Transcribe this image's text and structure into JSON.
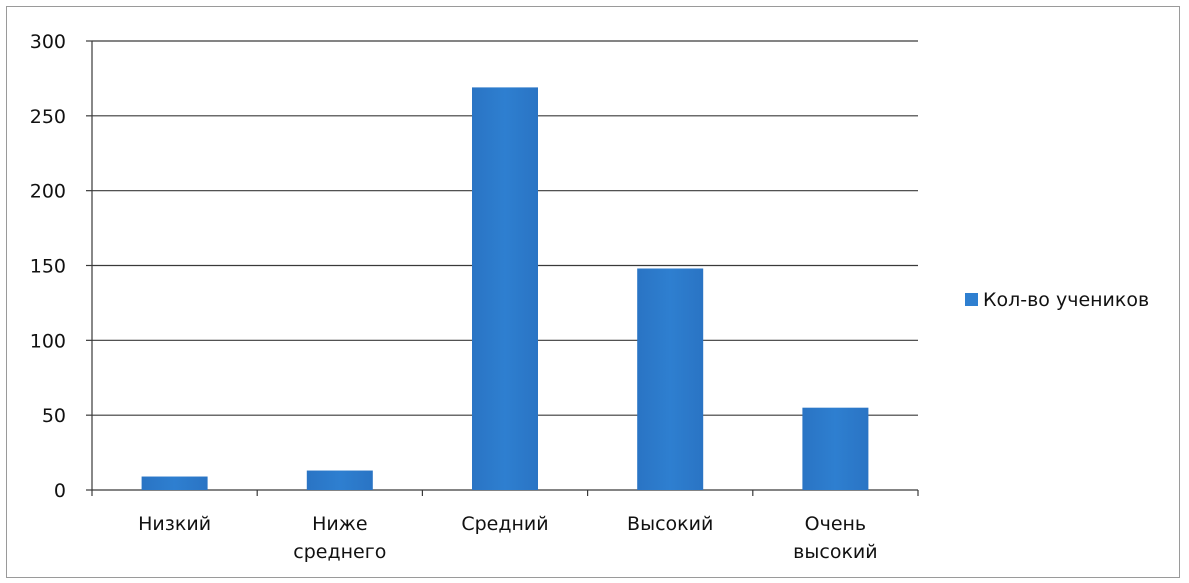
{
  "chart_data": {
    "type": "bar",
    "categories": [
      [
        "Низкий"
      ],
      [
        "Ниже",
        "среднего"
      ],
      [
        "Средний"
      ],
      [
        "Высокий"
      ],
      [
        "Очень",
        "высокий"
      ]
    ],
    "series": [
      {
        "name": "Кол-во учеников",
        "values": [
          9,
          13,
          269,
          148,
          55
        ],
        "color": "#2e7fd0"
      }
    ],
    "ylim": [
      0,
      300
    ],
    "yticks": [
      0,
      50,
      100,
      150,
      200,
      250,
      300
    ],
    "grid": true,
    "legend_position": "right",
    "title": "",
    "xlabel": "",
    "ylabel": ""
  }
}
